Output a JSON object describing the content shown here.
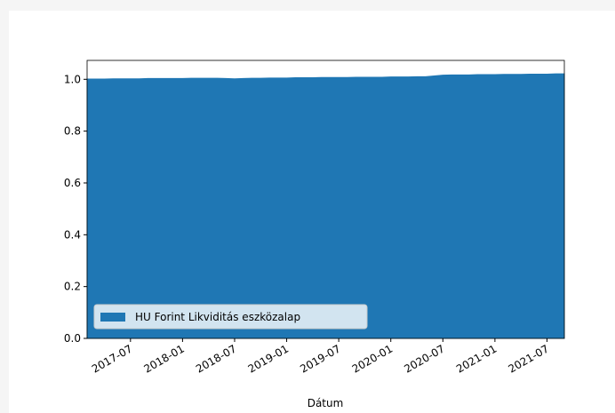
{
  "chart_data": {
    "type": "area",
    "xlabel": "Dátum",
    "x": [
      "2017-02",
      "2017-03",
      "2017-04",
      "2017-05",
      "2017-06",
      "2017-07",
      "2017-08",
      "2017-09",
      "2017-10",
      "2017-11",
      "2017-12",
      "2018-01",
      "2018-02",
      "2018-03",
      "2018-04",
      "2018-05",
      "2018-06",
      "2018-07",
      "2018-08",
      "2018-09",
      "2018-10",
      "2018-11",
      "2018-12",
      "2019-01",
      "2019-02",
      "2019-03",
      "2019-04",
      "2019-05",
      "2019-06",
      "2019-07",
      "2019-08",
      "2019-09",
      "2019-10",
      "2019-11",
      "2019-12",
      "2020-01",
      "2020-02",
      "2020-03",
      "2020-04",
      "2020-05",
      "2020-06",
      "2020-07",
      "2020-08",
      "2020-09",
      "2020-10",
      "2020-11",
      "2020-12",
      "2021-01",
      "2021-02",
      "2021-03",
      "2021-04",
      "2021-05",
      "2021-06",
      "2021-07",
      "2021-08",
      "2021-09"
    ],
    "series": [
      {
        "name": "HU Forint Likviditás eszközalap",
        "color": "#1f77b4",
        "values": [
          1.001,
          1.001,
          1.001,
          1.002,
          1.002,
          1.002,
          1.002,
          1.003,
          1.003,
          1.003,
          1.003,
          1.003,
          1.004,
          1.004,
          1.004,
          1.004,
          1.003,
          1.002,
          1.003,
          1.004,
          1.004,
          1.005,
          1.005,
          1.005,
          1.006,
          1.006,
          1.006,
          1.007,
          1.007,
          1.007,
          1.007,
          1.008,
          1.008,
          1.008,
          1.008,
          1.009,
          1.009,
          1.009,
          1.01,
          1.01,
          1.013,
          1.016,
          1.017,
          1.017,
          1.017,
          1.018,
          1.018,
          1.018,
          1.019,
          1.019,
          1.019,
          1.02,
          1.02,
          1.02,
          1.021,
          1.021
        ]
      }
    ],
    "xlim": [
      "2017-02",
      "2021-09"
    ],
    "xticks": [
      "2017-07",
      "2018-01",
      "2018-07",
      "2019-01",
      "2019-07",
      "2020-01",
      "2020-07",
      "2021-01",
      "2021-07"
    ],
    "ylim": [
      0,
      1.073
    ],
    "yticks": [
      {
        "value": 0,
        "label": "0.0"
      },
      0.2,
      0.4,
      0.6,
      0.8,
      {
        "value": 1,
        "label": "1.0"
      }
    ],
    "legend": "lower left"
  }
}
